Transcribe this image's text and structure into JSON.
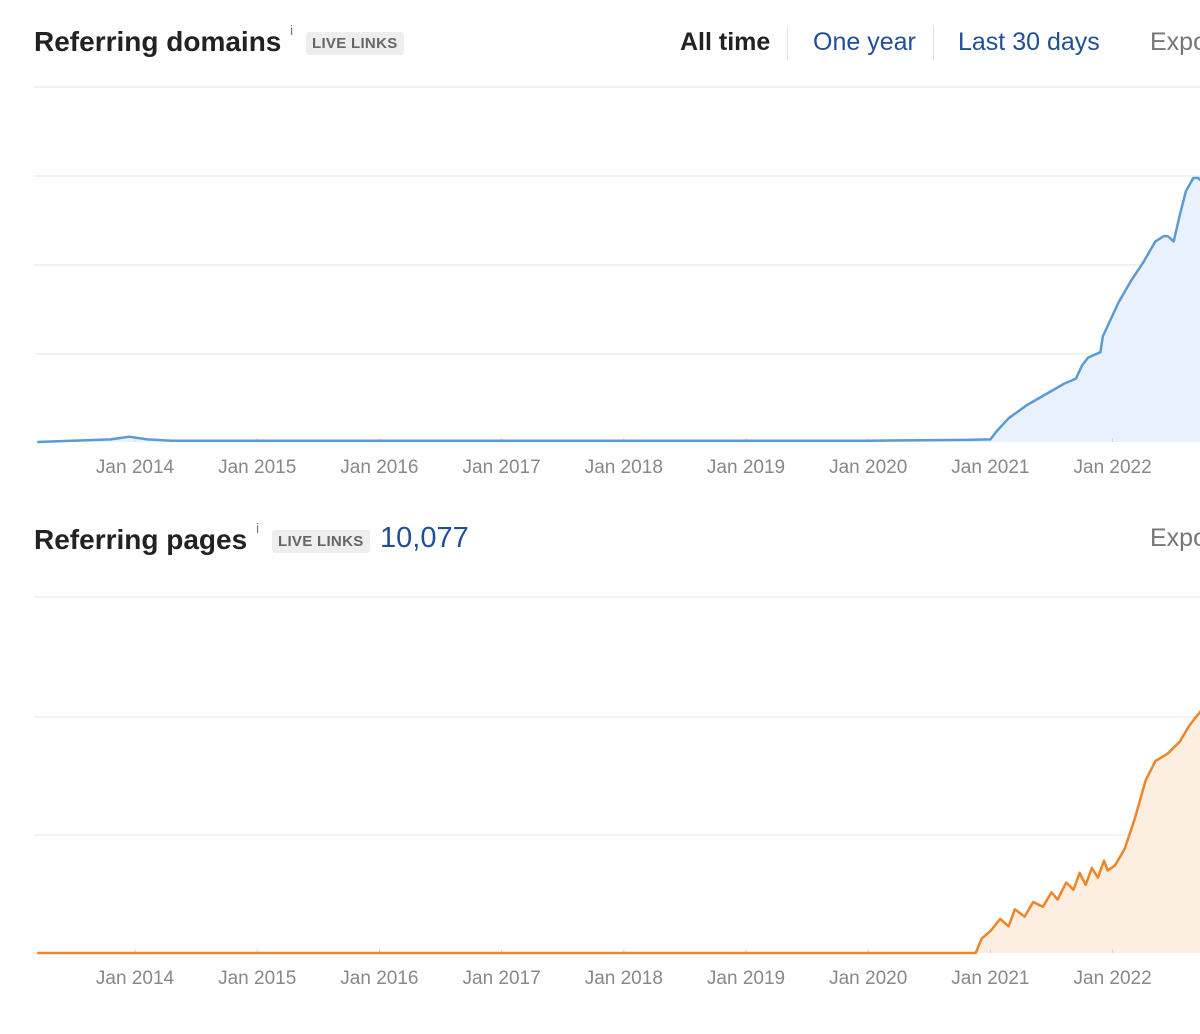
{
  "domains_section": {
    "title": "Referring domains",
    "info": "i",
    "badge": "LIVE LINKS",
    "tabs": [
      {
        "label": "All time",
        "active": true
      },
      {
        "label": "One year",
        "active": false
      },
      {
        "label": "Last 30 days",
        "active": false
      }
    ],
    "export_label": "Expo"
  },
  "pages_section": {
    "title": "Referring pages",
    "info": "i",
    "badge": "LIVE LINKS",
    "count": "10,077",
    "export_label": "Expo"
  },
  "colors": {
    "domains_line": "#5b9bd5",
    "domains_fill": "#e9f1fc",
    "pages_line": "#f08428",
    "pages_fill": "#fdeee2",
    "grid": "#e6e6e6",
    "tab_link": "#1f4f96"
  },
  "chart_data": [
    {
      "type": "area",
      "title": "",
      "xlabel": "",
      "ylabel": "",
      "tick_labels": [
        "Jan 2014",
        "Jan 2015",
        "Jan 2016",
        "Jan 2017",
        "Jan 2018",
        "Jan 2019",
        "Jan 2020",
        "Jan 2021",
        "Jan 2022"
      ],
      "grid": true,
      "legend": "none",
      "series": [
        {
          "x": [
            2013.2,
            2013.8,
            2013.95,
            2014.1,
            2014.3,
            2015.0,
            2016.0,
            2017.0,
            2018.0,
            2019.0,
            2020.0,
            2020.8,
            2021.0,
            2021.05,
            2021.15,
            2021.3,
            2021.45,
            2021.6,
            2021.7,
            2021.75,
            2021.8,
            2021.9,
            2021.92,
            2022.05,
            2022.15,
            2022.25,
            2022.35,
            2022.42,
            2022.45,
            2022.5,
            2022.55,
            2022.6,
            2022.66,
            2022.7,
            2022.75
          ],
          "values": [
            0.0,
            0.01,
            0.02,
            0.01,
            0.005,
            0.005,
            0.005,
            0.005,
            0.005,
            0.005,
            0.005,
            0.008,
            0.01,
            0.04,
            0.09,
            0.14,
            0.18,
            0.22,
            0.24,
            0.29,
            0.32,
            0.34,
            0.4,
            0.53,
            0.61,
            0.68,
            0.76,
            0.78,
            0.78,
            0.76,
            0.86,
            0.95,
            1.0,
            1.0,
            0.98
          ]
        }
      ]
    },
    {
      "type": "area",
      "title": "",
      "xlabel": "",
      "ylabel": "",
      "tick_labels": [
        "Jan 2014",
        "Jan 2015",
        "Jan 2016",
        "Jan 2017",
        "Jan 2018",
        "Jan 2019",
        "Jan 2020",
        "Jan 2021",
        "Jan 2022"
      ],
      "grid": true,
      "legend": "none",
      "series": [
        {
          "x": [
            2013.2,
            2014.0,
            2015.0,
            2016.0,
            2017.0,
            2018.0,
            2019.0,
            2020.0,
            2020.88,
            2020.93,
            2021.0,
            2021.08,
            2021.15,
            2021.2,
            2021.28,
            2021.35,
            2021.43,
            2021.5,
            2021.55,
            2021.62,
            2021.68,
            2021.73,
            2021.78,
            2021.83,
            2021.88,
            2021.93,
            2021.96,
            2022.02,
            2022.1,
            2022.18,
            2022.27,
            2022.35,
            2022.45,
            2022.55,
            2022.62,
            2022.68,
            2022.73,
            2022.75
          ],
          "values": [
            0.0,
            0.0,
            0.0,
            0.0,
            0.0,
            0.0,
            0.0,
            0.0,
            0.0,
            0.06,
            0.09,
            0.14,
            0.11,
            0.18,
            0.15,
            0.21,
            0.19,
            0.25,
            0.22,
            0.29,
            0.26,
            0.33,
            0.28,
            0.35,
            0.31,
            0.38,
            0.34,
            0.36,
            0.43,
            0.55,
            0.71,
            0.79,
            0.82,
            0.87,
            0.93,
            0.97,
            1.0,
            1.0
          ]
        }
      ]
    }
  ]
}
